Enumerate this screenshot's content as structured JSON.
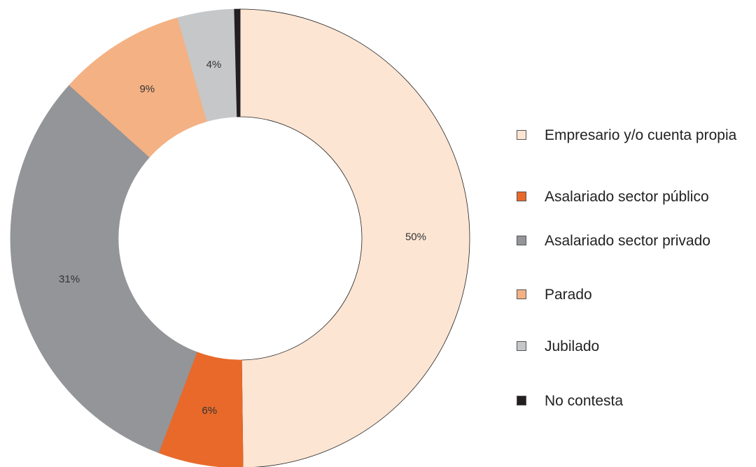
{
  "chart_data": {
    "type": "donut",
    "categories": [
      "Empresario y/o cuenta propia",
      "Asalariado sector público",
      "Asalariado sector privado",
      "Parado",
      "Jubilado",
      "No contesta"
    ],
    "values": [
      50,
      6,
      31,
      9,
      4,
      0.4
    ],
    "value_labels": [
      "50%",
      "6%",
      "31%",
      "9%",
      "4%",
      null
    ],
    "colors": [
      "#fde5d3",
      "#e8692a",
      "#939598",
      "#f4b183",
      "#c6c7c9",
      "#231f20"
    ],
    "legend": "right"
  }
}
